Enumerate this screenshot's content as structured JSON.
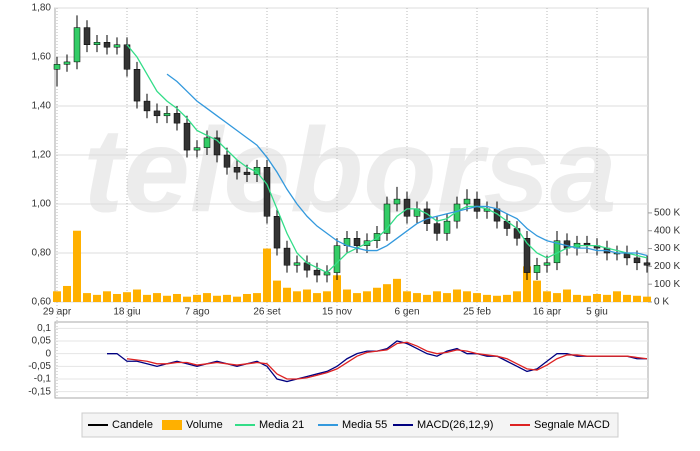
{
  "chart_data": [
    {
      "type": "candlestick",
      "watermark": "teleborsa",
      "candle_name": "Candele",
      "up_color": "#33cc66",
      "down_color": "#333333",
      "categories": [
        "29 apr",
        null,
        null,
        null,
        null,
        null,
        null,
        "18 giu",
        null,
        null,
        null,
        null,
        null,
        null,
        "7 ago",
        null,
        null,
        null,
        null,
        null,
        null,
        "26 set",
        null,
        null,
        null,
        null,
        null,
        null,
        "15 nov",
        null,
        null,
        null,
        null,
        null,
        null,
        "6 gen",
        null,
        null,
        null,
        null,
        null,
        null,
        "25 feb",
        null,
        null,
        null,
        null,
        null,
        null,
        "16 apr",
        null,
        null,
        null,
        null,
        "5 giu",
        null,
        null,
        null,
        null,
        null
      ],
      "open": [
        1.55,
        1.57,
        1.58,
        1.72,
        1.65,
        1.66,
        1.64,
        1.65,
        1.55,
        1.42,
        1.38,
        1.36,
        1.37,
        1.33,
        1.22,
        1.23,
        1.27,
        1.2,
        1.15,
        1.13,
        1.12,
        1.15,
        0.95,
        0.82,
        0.75,
        0.76,
        0.73,
        0.71,
        0.72,
        0.83,
        0.86,
        0.83,
        0.85,
        0.88,
        1.0,
        1.02,
        0.95,
        0.98,
        0.92,
        0.88,
        0.93,
        1.0,
        1.02,
        0.97,
        0.98,
        0.93,
        0.9,
        0.86,
        0.72,
        0.75,
        0.76,
        0.85,
        0.82,
        0.84,
        0.83,
        0.82,
        0.8,
        0.8,
        0.78,
        0.76
      ],
      "high": [
        1.6,
        1.61,
        1.77,
        1.75,
        1.69,
        1.69,
        1.68,
        1.68,
        1.58,
        1.45,
        1.41,
        1.4,
        1.4,
        1.36,
        1.26,
        1.3,
        1.3,
        1.23,
        1.18,
        1.16,
        1.18,
        1.18,
        0.98,
        0.85,
        0.79,
        0.79,
        0.76,
        0.75,
        0.86,
        0.89,
        0.89,
        0.88,
        0.91,
        1.03,
        1.07,
        1.05,
        1.01,
        1.01,
        0.95,
        0.96,
        1.03,
        1.06,
        1.05,
        1.01,
        1.01,
        0.96,
        0.93,
        0.89,
        0.78,
        0.79,
        0.89,
        0.88,
        0.87,
        0.87,
        0.86,
        0.85,
        0.83,
        0.83,
        0.81,
        0.79
      ],
      "low": [
        1.48,
        1.54,
        1.55,
        1.62,
        1.62,
        1.61,
        1.61,
        1.52,
        1.39,
        1.35,
        1.33,
        1.33,
        1.3,
        1.19,
        1.19,
        1.2,
        1.17,
        1.12,
        1.1,
        1.09,
        1.09,
        0.92,
        0.79,
        0.72,
        0.72,
        0.7,
        0.68,
        0.68,
        0.69,
        0.8,
        0.8,
        0.8,
        0.82,
        0.85,
        0.97,
        0.92,
        0.92,
        0.89,
        0.85,
        0.85,
        0.9,
        0.97,
        0.94,
        0.94,
        0.9,
        0.87,
        0.83,
        0.69,
        0.69,
        0.72,
        0.73,
        0.79,
        0.79,
        0.8,
        0.79,
        0.77,
        0.77,
        0.75,
        0.73,
        0.72
      ],
      "close": [
        1.57,
        1.58,
        1.72,
        1.65,
        1.66,
        1.64,
        1.65,
        1.55,
        1.42,
        1.38,
        1.36,
        1.37,
        1.33,
        1.22,
        1.23,
        1.27,
        1.2,
        1.15,
        1.13,
        1.12,
        1.15,
        0.95,
        0.82,
        0.75,
        0.76,
        0.73,
        0.71,
        0.72,
        0.83,
        0.86,
        0.83,
        0.85,
        0.88,
        1.0,
        1.02,
        0.95,
        0.98,
        0.92,
        0.88,
        0.93,
        1.0,
        1.02,
        0.97,
        0.98,
        0.93,
        0.9,
        0.86,
        0.72,
        0.75,
        0.76,
        0.85,
        0.82,
        0.84,
        0.83,
        0.82,
        0.8,
        0.8,
        0.78,
        0.76,
        0.75
      ],
      "volume": {
        "name": "Volume",
        "color": "#ffb000",
        "axis": "y2",
        "values": [
          60000,
          90000,
          400000,
          50000,
          40000,
          60000,
          45000,
          55000,
          70000,
          40000,
          50000,
          35000,
          45000,
          30000,
          40000,
          50000,
          35000,
          40000,
          30000,
          45000,
          50000,
          300000,
          120000,
          80000,
          60000,
          70000,
          50000,
          60000,
          150000,
          70000,
          50000,
          60000,
          80000,
          100000,
          130000,
          60000,
          50000,
          40000,
          60000,
          50000,
          70000,
          60000,
          50000,
          40000,
          35000,
          40000,
          60000,
          200000,
          120000,
          60000,
          50000,
          70000,
          40000,
          35000,
          45000,
          40000,
          60000,
          40000,
          35000,
          30000
        ]
      },
      "series": [
        {
          "name": "Media 21",
          "color": "#33dd88",
          "values": [
            null,
            null,
            null,
            null,
            null,
            null,
            null,
            1.65,
            1.6,
            1.53,
            1.46,
            1.42,
            1.39,
            1.35,
            1.3,
            1.28,
            1.26,
            1.22,
            1.18,
            1.15,
            1.13,
            1.08,
            0.98,
            0.88,
            0.8,
            0.76,
            0.74,
            0.72,
            0.76,
            0.8,
            0.82,
            0.84,
            0.86,
            0.9,
            0.95,
            0.98,
            0.98,
            0.96,
            0.93,
            0.94,
            0.97,
            0.99,
            0.99,
            0.98,
            0.96,
            0.93,
            0.9,
            0.84,
            0.8,
            0.78,
            0.8,
            0.82,
            0.83,
            0.83,
            0.83,
            0.82,
            0.81,
            0.8,
            0.79,
            0.78
          ]
        },
        {
          "name": "Media 55",
          "color": "#3399dd",
          "values": [
            null,
            null,
            null,
            null,
            null,
            null,
            null,
            null,
            null,
            null,
            null,
            1.53,
            1.5,
            1.46,
            1.42,
            1.39,
            1.36,
            1.33,
            1.3,
            1.27,
            1.24,
            1.19,
            1.13,
            1.06,
            1.0,
            0.95,
            0.91,
            0.88,
            0.85,
            0.83,
            0.82,
            0.81,
            0.81,
            0.83,
            0.86,
            0.89,
            0.92,
            0.94,
            0.95,
            0.96,
            0.97,
            0.98,
            0.99,
            0.99,
            0.98,
            0.96,
            0.94,
            0.9,
            0.87,
            0.85,
            0.84,
            0.83,
            0.82,
            0.82,
            0.81,
            0.81,
            0.8,
            0.8,
            0.8,
            0.79
          ]
        }
      ],
      "ylim": [
        0.6,
        1.8
      ],
      "yticks": [
        {
          "value": 0.6,
          "label": "0,60"
        },
        {
          "value": 0.8,
          "label": "0,80"
        },
        {
          "value": 1.0,
          "label": "1,00"
        },
        {
          "value": 1.2,
          "label": "1,20"
        },
        {
          "value": 1.4,
          "label": "1,40"
        },
        {
          "value": 1.6,
          "label": "1,60"
        },
        {
          "value": 1.8,
          "label": "1,80"
        }
      ],
      "y2lim": [
        0,
        1650000
      ],
      "y2ticks": [
        {
          "value": 0,
          "label": "0 K"
        },
        {
          "value": 100000,
          "label": "100 K"
        },
        {
          "value": 200000,
          "label": "200 K"
        },
        {
          "value": 300000,
          "label": "300 K"
        },
        {
          "value": 400000,
          "label": "400 K"
        },
        {
          "value": 500000,
          "label": "500 K"
        }
      ],
      "grid": true
    },
    {
      "type": "line",
      "series": [
        {
          "name": "MACD(26,12,9)",
          "color": "#000080",
          "values": [
            null,
            null,
            null,
            null,
            null,
            0.0,
            0.0,
            -0.03,
            -0.03,
            -0.04,
            -0.05,
            -0.04,
            -0.03,
            -0.04,
            -0.05,
            -0.04,
            -0.03,
            -0.04,
            -0.05,
            -0.04,
            -0.03,
            -0.05,
            -0.1,
            -0.11,
            -0.1,
            -0.09,
            -0.08,
            -0.07,
            -0.05,
            -0.02,
            0.0,
            0.01,
            0.01,
            0.02,
            0.05,
            0.04,
            0.02,
            0.0,
            -0.01,
            0.01,
            0.02,
            0.0,
            0.0,
            -0.01,
            -0.01,
            -0.03,
            -0.05,
            -0.07,
            -0.06,
            -0.03,
            0.0,
            0.0,
            -0.01,
            -0.01,
            -0.01,
            -0.01,
            -0.01,
            -0.01,
            -0.02,
            -0.02
          ]
        },
        {
          "name": "Segnale MACD",
          "color": "#dd2222",
          "values": [
            null,
            null,
            null,
            null,
            null,
            null,
            null,
            -0.02,
            -0.025,
            -0.03,
            -0.04,
            -0.04,
            -0.035,
            -0.035,
            -0.045,
            -0.04,
            -0.035,
            -0.04,
            -0.045,
            -0.04,
            -0.035,
            -0.04,
            -0.08,
            -0.1,
            -0.1,
            -0.095,
            -0.085,
            -0.075,
            -0.06,
            -0.035,
            -0.01,
            0.005,
            0.01,
            0.015,
            0.04,
            0.045,
            0.03,
            0.01,
            0.0,
            0.005,
            0.015,
            0.01,
            0.0,
            -0.005,
            -0.01,
            -0.02,
            -0.04,
            -0.06,
            -0.065,
            -0.045,
            -0.02,
            -0.005,
            -0.005,
            -0.01,
            -0.01,
            -0.01,
            -0.01,
            -0.01,
            -0.015,
            -0.02
          ]
        }
      ],
      "ylim": [
        -0.175,
        0.125
      ],
      "yticks": [
        {
          "value": 0.1,
          "label": "0,1"
        },
        {
          "value": 0.05,
          "label": "0,05"
        },
        0,
        {
          "value": -0.05,
          "label": "-0,05"
        },
        {
          "value": -0.1,
          "label": "-0,1"
        },
        {
          "value": -0.15,
          "label": "-0,15"
        }
      ],
      "grid": true
    }
  ]
}
